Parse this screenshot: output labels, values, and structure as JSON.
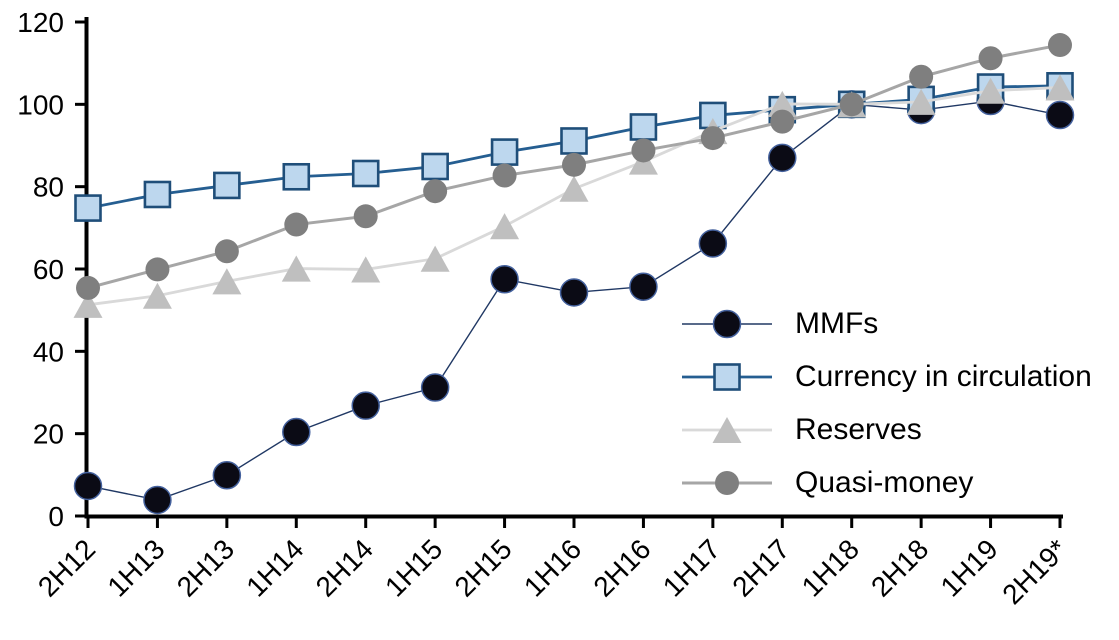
{
  "chart_data": {
    "type": "line",
    "title": "",
    "xlabel": "",
    "ylabel": "",
    "categories": [
      "2H12",
      "1H13",
      "2H13",
      "1H14",
      "2H14",
      "1H15",
      "2H15",
      "1H16",
      "2H16",
      "1H17",
      "2H17",
      "1H18",
      "2H18",
      "1H19",
      "2H19*"
    ],
    "series": [
      {
        "name": "MMFs",
        "marker": "circle",
        "marker_size": 27,
        "marker_fill": "#0b0b15",
        "marker_stroke": "#44619d",
        "marker_stroke_width": 1.5,
        "line_color": "#203864",
        "line_width": 1.4,
        "values": [
          7.3,
          3.9,
          9.9,
          20.4,
          26.8,
          31.2,
          57.5,
          54.3,
          55.7,
          66.2,
          87.0,
          100.0,
          98.6,
          100.8,
          97.4
        ]
      },
      {
        "name": "Currency in circulation",
        "marker": "square",
        "marker_size": 25,
        "marker_fill": "#bdd7ee",
        "marker_stroke": "#1f4e79",
        "marker_stroke_width": 2.6,
        "line_color": "#255e91",
        "line_width": 2.8,
        "values": [
          74.8,
          78.1,
          80.3,
          82.4,
          83.2,
          84.9,
          88.4,
          91.1,
          94.5,
          97.3,
          98.7,
          100.0,
          101.2,
          104.2,
          104.5
        ]
      },
      {
        "name": "Reserves",
        "marker": "triangle",
        "marker_size": 29,
        "marker_fill": "#bfbfbf",
        "marker_stroke": "none",
        "marker_stroke_width": 0,
        "line_color": "#d9d9d9",
        "line_width": 2.8,
        "values": [
          51.3,
          53.5,
          57.0,
          60.1,
          59.9,
          62.5,
          70.4,
          79.5,
          86.1,
          93.5,
          100.1,
          100.0,
          100.6,
          103.3,
          104.1
        ]
      },
      {
        "name": "Quasi-money",
        "marker": "circle",
        "marker_size": 24,
        "marker_fill": "#7f7f7f",
        "marker_stroke": "none",
        "marker_stroke_width": 0,
        "line_color": "#a6a6a6",
        "line_width": 3,
        "values": [
          55.4,
          59.9,
          64.3,
          70.8,
          72.8,
          78.9,
          82.7,
          85.3,
          88.8,
          91.8,
          95.8,
          100.0,
          106.7,
          111.2,
          114.4
        ]
      }
    ],
    "y_axis": {
      "min": 0,
      "max": 120,
      "step": 20,
      "tick_labels": [
        "0",
        "20",
        "40",
        "60",
        "80",
        "100",
        "120"
      ]
    },
    "x_axis": {
      "tick_labels": [
        "2H12",
        "1H13",
        "2H13",
        "1H14",
        "2H14",
        "1H15",
        "2H15",
        "1H16",
        "2H16",
        "1H17",
        "2H17",
        "1H18",
        "2H18",
        "1H19",
        "2H19*"
      ],
      "label_rotation_deg": -45
    },
    "grid": false,
    "legend_position": "inside-right",
    "axis_color": "#000000",
    "background_color": "#ffffff"
  }
}
